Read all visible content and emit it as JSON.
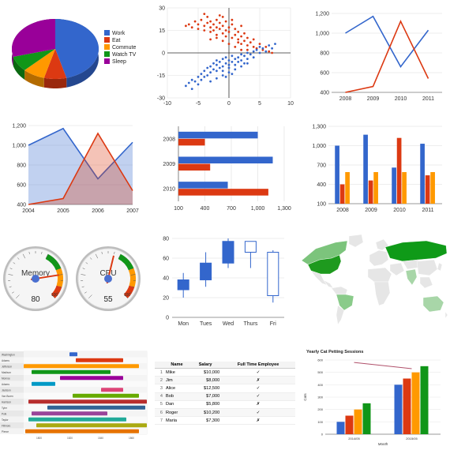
{
  "chart_data": [
    {
      "id": "pie",
      "type": "pie",
      "labels": [
        "Work",
        "Eat",
        "Commute",
        "Watch TV",
        "Sleep"
      ],
      "values": [
        11,
        2,
        2,
        2,
        7
      ],
      "colors": [
        "#3366cc",
        "#dc3912",
        "#ff9900",
        "#109618",
        "#990099"
      ],
      "legend": "right",
      "style": "3d"
    },
    {
      "id": "scatter",
      "type": "scatter",
      "xlim": [
        -10,
        10
      ],
      "ylim": [
        -30,
        30
      ],
      "xticks": [
        -10,
        -5,
        0,
        5,
        10
      ],
      "yticks": [
        30,
        15,
        0,
        -15,
        -30
      ],
      "series": [
        {
          "color": "#dc3912",
          "points": [
            [
              -7,
              18
            ],
            [
              -6.5,
              19
            ],
            [
              -6,
              17
            ],
            [
              -5.5,
              21
            ],
            [
              -5,
              16
            ],
            [
              -5,
              19
            ],
            [
              -4.5,
              22
            ],
            [
              -4,
              15
            ],
            [
              -4,
              18
            ],
            [
              -3.5,
              20
            ],
            [
              -3.5,
              24
            ],
            [
              -3,
              14
            ],
            [
              -3,
              17
            ],
            [
              -3,
              21
            ],
            [
              -2.5,
              19
            ],
            [
              -2.5,
              15
            ],
            [
              -2,
              22
            ],
            [
              -2,
              12
            ],
            [
              -2,
              17
            ],
            [
              -1.5,
              16
            ],
            [
              -1.5,
              20
            ],
            [
              -1,
              13
            ],
            [
              -1,
              18
            ],
            [
              -1,
              24
            ],
            [
              -0.5,
              15
            ],
            [
              -0.5,
              11
            ],
            [
              0,
              17
            ],
            [
              0,
              14
            ],
            [
              0.5,
              10
            ],
            [
              0.5,
              19
            ],
            [
              1,
              12
            ],
            [
              1,
              16
            ],
            [
              1.5,
              9
            ],
            [
              1.5,
              14
            ],
            [
              2,
              11
            ],
            [
              2,
              6
            ],
            [
              2.5,
              8
            ],
            [
              2.5,
              13
            ],
            [
              3,
              5
            ],
            [
              3,
              10
            ],
            [
              3.5,
              7
            ],
            [
              4,
              4
            ],
            [
              4,
              9
            ],
            [
              4.5,
              3
            ],
            [
              5,
              6
            ],
            [
              5.5,
              2
            ],
            [
              6,
              4
            ],
            [
              6.5,
              1
            ],
            [
              7,
              0
            ],
            [
              -1,
              8
            ],
            [
              0,
              6
            ],
            [
              1,
              4
            ],
            [
              2,
              2
            ],
            [
              -2,
              10
            ],
            [
              -3,
              9
            ],
            [
              3,
              2
            ],
            [
              1.5,
              7
            ],
            [
              -0.5,
              21
            ],
            [
              -1.5,
              25
            ],
            [
              0.5,
              22
            ],
            [
              2,
              18
            ],
            [
              -4,
              26
            ]
          ]
        },
        {
          "color": "#3366cc",
          "points": [
            [
              -7,
              -22
            ],
            [
              -6.5,
              -20
            ],
            [
              -6,
              -24
            ],
            [
              -6,
              -18
            ],
            [
              -5.5,
              -19
            ],
            [
              -5,
              -21
            ],
            [
              -5,
              -16
            ],
            [
              -4.5,
              -14
            ],
            [
              -4.5,
              -18
            ],
            [
              -4,
              -12
            ],
            [
              -4,
              -16
            ],
            [
              -3.5,
              -10
            ],
            [
              -3.5,
              -15
            ],
            [
              -3,
              -13
            ],
            [
              -3,
              -9
            ],
            [
              -2.5,
              -11
            ],
            [
              -2.5,
              -7
            ],
            [
              -2,
              -12
            ],
            [
              -2,
              -8
            ],
            [
              -2,
              -5
            ],
            [
              -1.5,
              -10
            ],
            [
              -1.5,
              -6
            ],
            [
              -1,
              -9
            ],
            [
              -1,
              -4
            ],
            [
              -1,
              -12
            ],
            [
              -0.5,
              -7
            ],
            [
              -0.5,
              -3
            ],
            [
              0,
              -8
            ],
            [
              0,
              -5
            ],
            [
              0,
              -10
            ],
            [
              0.5,
              -6
            ],
            [
              0.5,
              -2
            ],
            [
              1,
              -4
            ],
            [
              1,
              -8
            ],
            [
              1.5,
              -3
            ],
            [
              1.5,
              -6
            ],
            [
              2,
              -1
            ],
            [
              2,
              -5
            ],
            [
              2.5,
              -2
            ],
            [
              2.5,
              -7
            ],
            [
              3,
              0
            ],
            [
              3,
              -4
            ],
            [
              3.5,
              -1
            ],
            [
              4,
              1
            ],
            [
              4,
              -3
            ],
            [
              4.5,
              2
            ],
            [
              5,
              0
            ],
            [
              5,
              4
            ],
            [
              5.5,
              3
            ],
            [
              6,
              1
            ],
            [
              6.5,
              5
            ],
            [
              7,
              3
            ],
            [
              7.5,
              6
            ],
            [
              -1,
              -15
            ],
            [
              0,
              -13
            ],
            [
              1,
              -11
            ],
            [
              -2,
              -17
            ],
            [
              -3,
              -19
            ],
            [
              2,
              -9
            ],
            [
              3,
              -7
            ],
            [
              0.5,
              -14
            ],
            [
              -0.5,
              -16
            ]
          ]
        }
      ]
    },
    {
      "id": "line",
      "type": "line",
      "categories": [
        "2008",
        "2009",
        "2010",
        "2011"
      ],
      "ylim": [
        400,
        1200
      ],
      "yticks": [
        "1,200",
        "1,000",
        "800",
        "600",
        "400"
      ],
      "series": [
        {
          "color": "#3366cc",
          "values": [
            1000,
            1170,
            660,
            1030
          ]
        },
        {
          "color": "#dc3912",
          "values": [
            400,
            460,
            1120,
            540
          ]
        }
      ]
    },
    {
      "id": "area",
      "type": "area",
      "categories": [
        "2004",
        "2005",
        "2006",
        "2007"
      ],
      "ylim": [
        400,
        1200
      ],
      "yticks": [
        "1,200",
        "1,000",
        "800",
        "600",
        "400"
      ],
      "series": [
        {
          "color": "#3366cc",
          "values": [
            1000,
            1170,
            660,
            1030
          ]
        },
        {
          "color": "#dc3912",
          "values": [
            400,
            460,
            1120,
            540
          ]
        }
      ]
    },
    {
      "id": "hbar",
      "type": "bar",
      "orientation": "horizontal",
      "categories": [
        "2008",
        "2009",
        "2010"
      ],
      "xlim": [
        100,
        1300
      ],
      "xticks": [
        "100",
        "400",
        "700",
        "1,000",
        "1,300"
      ],
      "series": [
        {
          "color": "#3366cc",
          "values": [
            1000,
            1170,
            660
          ]
        },
        {
          "color": "#dc3912",
          "values": [
            400,
            460,
            1120
          ]
        }
      ]
    },
    {
      "id": "vbar",
      "type": "bar",
      "categories": [
        "2008",
        "2009",
        "2010",
        "2011"
      ],
      "ylim": [
        100,
        1300
      ],
      "yticks": [
        "1,300",
        "1,000",
        "700",
        "400",
        "100"
      ],
      "series": [
        {
          "color": "#3366cc",
          "values": [
            1000,
            1170,
            660,
            1030
          ]
        },
        {
          "color": "#dc3912",
          "values": [
            400,
            460,
            1120,
            540
          ]
        },
        {
          "color": "#ff9900",
          "values": [
            590,
            590,
            590,
            590
          ]
        }
      ]
    },
    {
      "id": "gauges",
      "type": "gauge",
      "items": [
        {
          "label": "Memory",
          "value": 80,
          "max": 100,
          "tick_label": "100"
        },
        {
          "label": "CPU",
          "value": 55,
          "max": 100,
          "tick_label": "100"
        }
      ]
    },
    {
      "id": "candlestick",
      "type": "candlestick",
      "categories": [
        "Mon",
        "Tues",
        "Wed",
        "Thurs",
        "Fri"
      ],
      "ylim": [
        0,
        80
      ],
      "yticks": [
        80,
        60,
        40,
        20,
        0
      ],
      "series": [
        {
          "color": "#3366cc",
          "candles": [
            [
              20,
              28,
              38,
              45
            ],
            [
              31,
              38,
              55,
              66
            ],
            [
              50,
              55,
              77,
              80
            ],
            [
              50,
              77,
              66,
              77
            ],
            [
              15,
              66,
              22,
              68
            ]
          ]
        }
      ]
    },
    {
      "id": "geo",
      "type": "map",
      "regions": [
        {
          "name": "Russia",
          "color": "#0f9a18"
        },
        {
          "name": "United States",
          "color": "#1e9a1e"
        },
        {
          "name": "Canada",
          "color": "#7cc47c"
        },
        {
          "name": "Brazil",
          "color": "#8acb8a"
        },
        {
          "name": "Australia",
          "color": "#a8d6a8"
        },
        {
          "name": "India",
          "color": "#a8d6a8"
        },
        {
          "name": "Other",
          "color": "#e6e6e6"
        }
      ]
    },
    {
      "id": "gantt",
      "type": "timeline",
      "rows": [
        "Washington",
        "Adams",
        "Jefferson",
        "Madison",
        "Monroe",
        "Adams",
        "Jackson",
        "Van Buren",
        "Harrison",
        "Tyler",
        "Polk",
        "Taylor",
        "Fillmore",
        "Pierce"
      ],
      "ticks": [
        "1800",
        "1820",
        "1840",
        "1860"
      ]
    },
    {
      "id": "table",
      "type": "table",
      "columns": [
        "Name",
        "Salary",
        "Full Time Employee"
      ],
      "rows": [
        [
          "1",
          "Mike",
          "$10,000",
          "✓"
        ],
        [
          "2",
          "Jim",
          "$8,000",
          "✗"
        ],
        [
          "3",
          "Alice",
          "$12,500",
          "✓"
        ],
        [
          "4",
          "Bob",
          "$7,000",
          "✓"
        ],
        [
          "5",
          "Dan",
          "$5,800",
          "✗"
        ],
        [
          "6",
          "Roger",
          "$10,200",
          "✓"
        ],
        [
          "7",
          "Maria",
          "$7,300",
          "✗"
        ]
      ]
    },
    {
      "id": "combo",
      "type": "bar",
      "title": "Yearly Cat Petting Sessions",
      "xlabel": "Month",
      "ylabel": "Cats",
      "categories": [
        "2014/05",
        "2015/05"
      ],
      "ylim": [
        0,
        600
      ],
      "yticks": [
        "600",
        "500",
        "400",
        "300",
        "200",
        "100",
        "0"
      ],
      "series": [
        {
          "color": "#3366cc",
          "values": [
            100,
            400
          ]
        },
        {
          "color": "#dc3912",
          "values": [
            150,
            450
          ]
        },
        {
          "color": "#ff9900",
          "values": [
            200,
            500
          ]
        },
        {
          "color": "#109618",
          "values": [
            250,
            550
          ]
        }
      ],
      "trend": {
        "color": "#b0506a",
        "values": [
          580,
          530
        ]
      }
    }
  ]
}
